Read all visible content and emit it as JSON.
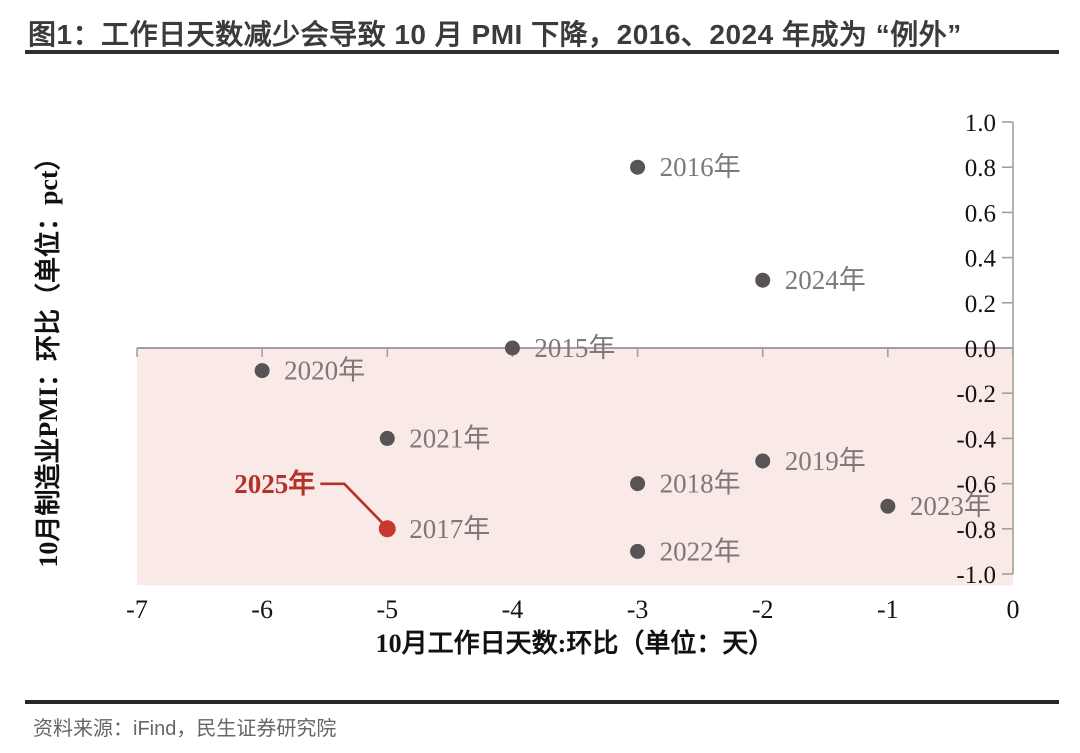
{
  "page": {
    "title": "图1：工作日天数减少会导致 10 月 PMI 下降，2016、2024 年成为 “例外”",
    "source": "资料来源：iFind，民生证券研究院"
  },
  "colors": {
    "title_text": "#3b3b3b",
    "rule": "#2a2a2a",
    "axis": "#a59e9e",
    "tick_label": "#141414",
    "axis_title": "#111111",
    "point_gray": "#585354",
    "point_label": "#7e7878",
    "highlight_red": "#c8382f",
    "annotation_red": "#b5322b",
    "negative_region": "#f9e9e7",
    "source_text": "#666666"
  },
  "chart_data": {
    "type": "scatter",
    "title": "图1：工作日天数减少会导致 10 月 PMI 下降，2016、2024 年成为 “例外”",
    "xlabel": "10月工作日天数:环比（单位：天）",
    "ylabel": "10月制造业PMI：环比（单位：pct）",
    "xlim": [
      -7,
      0
    ],
    "ylim": [
      -1.05,
      1.0
    ],
    "x_ticks": [
      "-7",
      "-6",
      "-5",
      "-4",
      "-3",
      "-2",
      "-1",
      "0"
    ],
    "y_ticks": [
      "1.0",
      "0.8",
      "0.6",
      "0.4",
      "0.2",
      "0.0",
      "-0.2",
      "-0.4",
      "-0.6",
      "-0.8",
      "-1.0"
    ],
    "y_axis_side": "right",
    "x_axis_crosses_at": 0,
    "grid": false,
    "legend": "none",
    "shaded_region": {
      "from": 0,
      "to": -1.05,
      "fill": "#f9e9e7"
    },
    "points": [
      {
        "label": "2015年",
        "x": -4,
        "y": 0.0,
        "color": "#585354",
        "highlight": false
      },
      {
        "label": "2016年",
        "x": -3,
        "y": 0.8,
        "color": "#585354",
        "highlight": false
      },
      {
        "label": "2017年",
        "x": -5,
        "y": -0.8,
        "color": "#c8382f",
        "highlight": true
      },
      {
        "label": "2018年",
        "x": -3,
        "y": -0.6,
        "color": "#585354",
        "highlight": false
      },
      {
        "label": "2019年",
        "x": -2,
        "y": -0.5,
        "color": "#585354",
        "highlight": false
      },
      {
        "label": "2020年",
        "x": -6,
        "y": -0.1,
        "color": "#585354",
        "highlight": false
      },
      {
        "label": "2021年",
        "x": -5,
        "y": -0.4,
        "color": "#585354",
        "highlight": false
      },
      {
        "label": "2022年",
        "x": -3,
        "y": -0.9,
        "color": "#585354",
        "highlight": false
      },
      {
        "label": "2023年",
        "x": -1,
        "y": -0.7,
        "color": "#585354",
        "highlight": false
      },
      {
        "label": "2024年",
        "x": -2,
        "y": 0.3,
        "color": "#585354",
        "highlight": false
      }
    ],
    "annotation": {
      "text": "2025年",
      "target": "2017年",
      "color": "#b5322b"
    }
  }
}
